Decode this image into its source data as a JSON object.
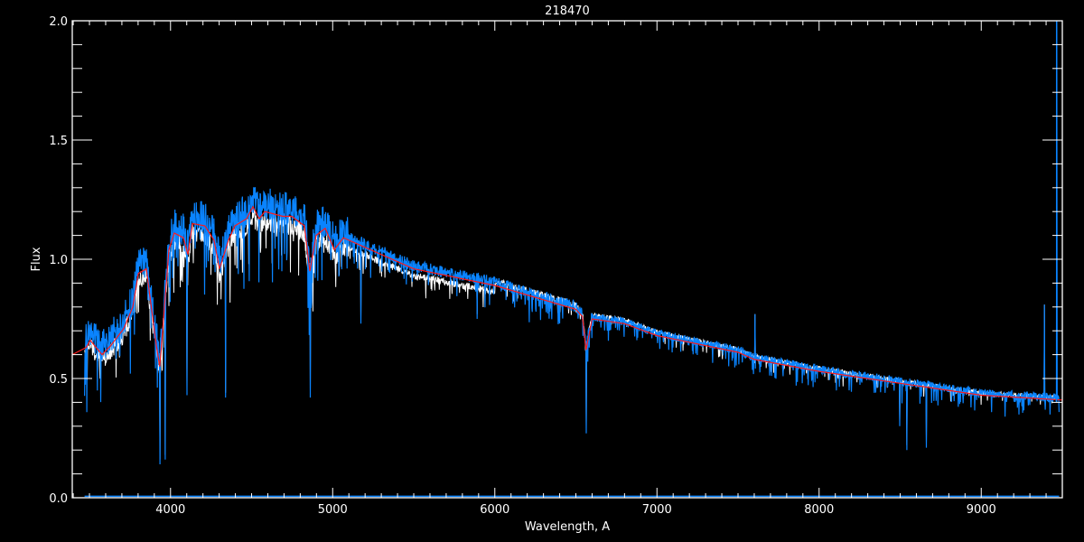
{
  "chart_data": {
    "type": "line",
    "title": "218470",
    "xlabel": "Wavelength, A",
    "ylabel": "Flux",
    "xlim": [
      3394,
      9500
    ],
    "ylim": [
      0.0,
      2.0
    ],
    "xticks": [
      4000,
      5000,
      6000,
      7000,
      8000,
      9000
    ],
    "xtick_labels": [
      "4000",
      "5000",
      "6000",
      "7000",
      "8000",
      "9000"
    ],
    "yticks": [
      0.0,
      0.5,
      1.0,
      1.5,
      2.0
    ],
    "ytick_labels": [
      "0.0",
      "0.5",
      "1.0",
      "1.5",
      "2.0"
    ],
    "grid": false,
    "background": "#000000",
    "colors": {
      "axes": "#ffffff",
      "observed": "#ffffff",
      "model": "#0a84ff",
      "smoothed": "#ff1a1a"
    },
    "series": [
      {
        "color": "#ff1a1a",
        "x": [
          3394,
          3480,
          3505,
          3578,
          3634,
          3712,
          3767,
          3801,
          3851,
          3912,
          3934,
          3990,
          4023,
          4079,
          4107,
          4135,
          4212,
          4268,
          4302,
          4357,
          4397,
          4469,
          4508,
          4547,
          4581,
          4692,
          4748,
          4826,
          4859,
          4898,
          4954,
          5010,
          5066,
          5500,
          6000,
          6500,
          6540,
          6563,
          6600,
          6800,
          7000,
          7500,
          7600,
          8000,
          8500,
          9000,
          9500
        ],
        "y": [
          0.6,
          0.63,
          0.66,
          0.6,
          0.64,
          0.71,
          0.8,
          0.94,
          0.96,
          0.64,
          0.55,
          1.04,
          1.11,
          1.09,
          1.02,
          1.15,
          1.14,
          1.08,
          0.96,
          1.08,
          1.14,
          1.17,
          1.22,
          1.17,
          1.2,
          1.18,
          1.18,
          1.14,
          0.95,
          1.1,
          1.13,
          1.04,
          1.09,
          0.96,
          0.89,
          0.79,
          0.76,
          0.62,
          0.75,
          0.73,
          0.68,
          0.61,
          0.58,
          0.53,
          0.48,
          0.43,
          0.41
        ]
      },
      {
        "color": "#ffffff",
        "x_range": [
          3470,
          9480
        ]
      },
      {
        "color": "#0a84ff",
        "x_range": [
          3470,
          9480
        ]
      }
    ],
    "features": [
      {
        "x": 3934,
        "y": 0.14
      },
      {
        "x": 3968,
        "y": 0.16
      },
      {
        "x": 4102,
        "y": 0.43
      },
      {
        "x": 4340,
        "y": 0.42
      },
      {
        "x": 4861,
        "y": 0.42
      },
      {
        "x": 5175,
        "y": 0.73
      },
      {
        "x": 5890,
        "y": 0.75
      },
      {
        "x": 6563,
        "y": 0.27
      },
      {
        "x": 7605,
        "y": 0.77
      },
      {
        "x": 8498,
        "y": 0.3
      },
      {
        "x": 8542,
        "y": 0.2
      },
      {
        "x": 8662,
        "y": 0.21
      },
      {
        "x": 9390,
        "y": 0.81
      },
      {
        "x": 9465,
        "y": 2.0
      }
    ]
  }
}
